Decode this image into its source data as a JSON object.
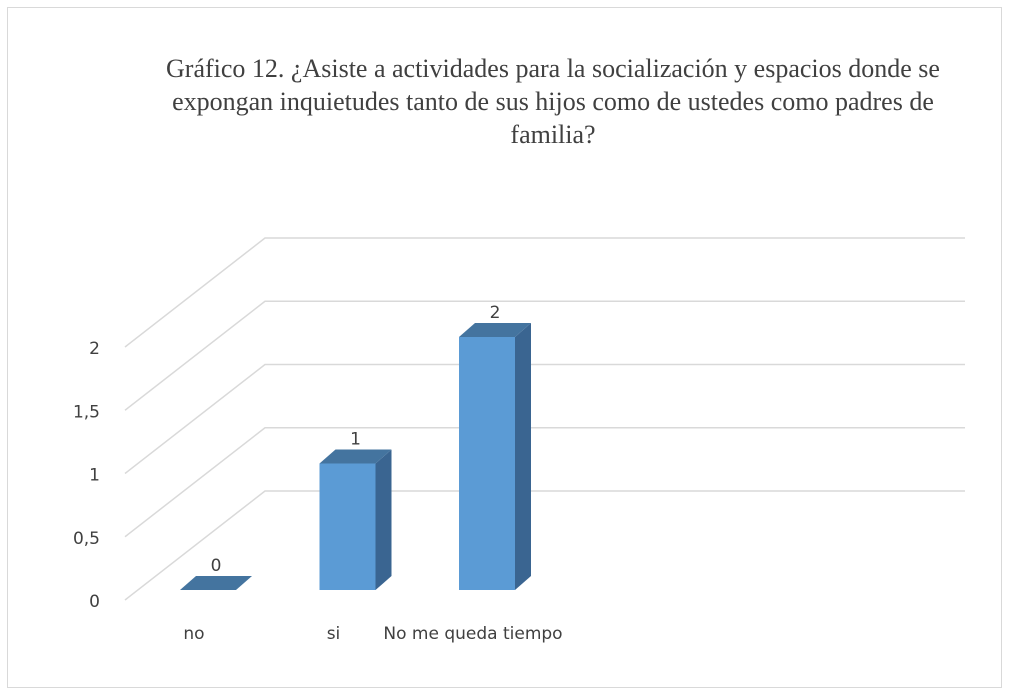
{
  "chart_data": {
    "type": "bar3d",
    "title": "Gráfico 12. ¿Asiste a actividades para la socialización y espacios donde se expongan inquietudes tanto de sus hijos como de ustedes como padres de familia?",
    "categories": [
      "no",
      "si",
      "No me queda tiempo"
    ],
    "values": [
      0,
      1,
      2
    ],
    "color": "#5b9bd5",
    "ylim": [
      0,
      2
    ],
    "yticks": [
      0,
      {
        "value": 0.5,
        "label": "0,5"
      },
      1,
      {
        "value": 1.5,
        "label": "1,5"
      },
      2
    ],
    "grid": true
  }
}
